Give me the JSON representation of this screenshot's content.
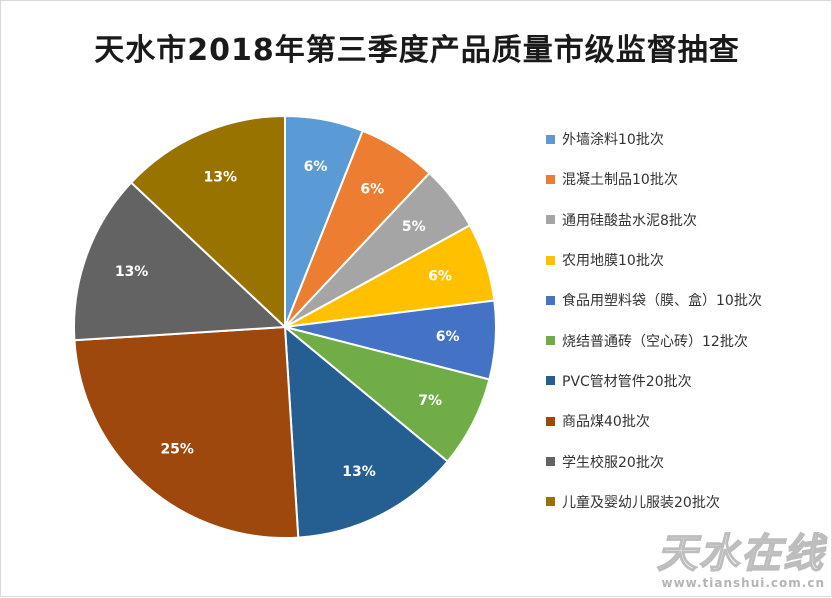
{
  "chart_data": {
    "type": "pie",
    "title": "天水市2018年第三季度产品质量市级监督抽查",
    "legend_position": "right",
    "slices": [
      {
        "label": "外墙涂料10批次",
        "value": 6,
        "display": "6%",
        "color": "#5b9bd5"
      },
      {
        "label": "混凝土制品10批次",
        "value": 6,
        "display": "6%",
        "color": "#ed7d31"
      },
      {
        "label": "通用硅酸盐水泥8批次",
        "value": 5,
        "display": "5%",
        "color": "#a5a5a5"
      },
      {
        "label": "农用地膜10批次",
        "value": 6,
        "display": "6%",
        "color": "#ffc000"
      },
      {
        "label": "食品用塑料袋（膜、盒）10批次",
        "value": 6,
        "display": "6%",
        "color": "#4472c4"
      },
      {
        "label": "烧结普通砖（空心砖）12批次",
        "value": 7,
        "display": "7%",
        "color": "#70ad47"
      },
      {
        "label": "PVC管材管件20批次",
        "value": 13,
        "display": "13%",
        "color": "#255e91"
      },
      {
        "label": "商品煤40批次",
        "value": 25,
        "display": "25%",
        "color": "#9e480e"
      },
      {
        "label": "学生校服20批次",
        "value": 13,
        "display": "13%",
        "color": "#636363"
      },
      {
        "label": "儿童及婴幼儿服装20批次",
        "value": 13,
        "display": "13%",
        "color": "#997300"
      }
    ]
  },
  "watermark": {
    "main": "天水在线",
    "url": "www.tianshui.com.cn"
  }
}
